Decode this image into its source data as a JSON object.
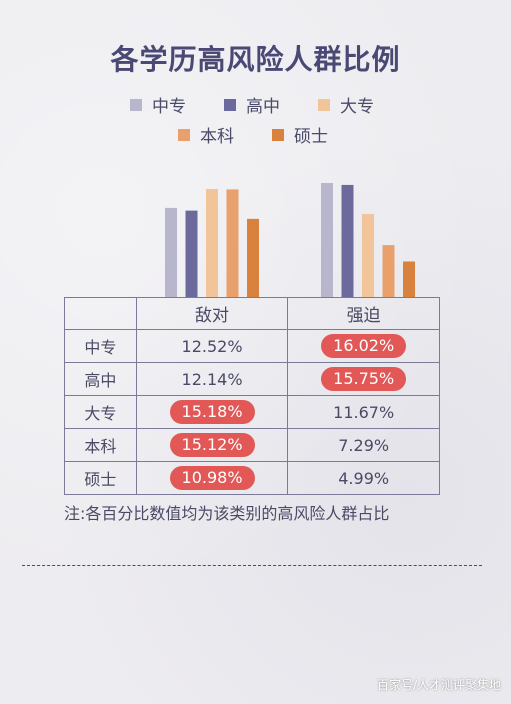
{
  "title": "各学历高风险人群比例",
  "legend": [
    {
      "label": "中专",
      "color": "#b7b6cc"
    },
    {
      "label": "高中",
      "color": "#6c6a9d"
    },
    {
      "label": "大专",
      "color": "#f2c49a"
    },
    {
      "label": "本科",
      "color": "#e8a06c"
    },
    {
      "label": "硕士",
      "color": "#d8823e"
    }
  ],
  "chart_data": {
    "type": "bar",
    "categories": [
      "敌对",
      "强迫"
    ],
    "series": [
      {
        "name": "中专",
        "values": [
          12.52,
          16.02
        ]
      },
      {
        "name": "高中",
        "values": [
          12.14,
          15.75
        ]
      },
      {
        "name": "大专",
        "values": [
          15.18,
          11.67
        ]
      },
      {
        "name": "本科",
        "values": [
          15.12,
          7.29
        ]
      },
      {
        "name": "硕士",
        "values": [
          10.98,
          4.99
        ]
      }
    ],
    "ylim": [
      0,
      16.02
    ],
    "grid": false
  },
  "table": {
    "headers": [
      "",
      "敌对",
      "强迫"
    ],
    "rows": [
      {
        "label": "中专",
        "a": "12.52%",
        "a_hl": false,
        "b": "16.02%",
        "b_hl": true
      },
      {
        "label": "高中",
        "a": "12.14%",
        "a_hl": false,
        "b": "15.75%",
        "b_hl": true
      },
      {
        "label": "大专",
        "a": "15.18%",
        "a_hl": true,
        "b": "11.67%",
        "b_hl": false
      },
      {
        "label": "本科",
        "a": "15.12%",
        "a_hl": true,
        "b": "7.29%",
        "b_hl": false
      },
      {
        "label": "硕士",
        "a": "10.98%",
        "a_hl": true,
        "b": "4.99%",
        "b_hl": false
      }
    ]
  },
  "highlight_color": "#e25856",
  "note": "注:各百分比数值均为该类别的高风险人群占比",
  "watermark": "百家号/人才测评聚集地"
}
